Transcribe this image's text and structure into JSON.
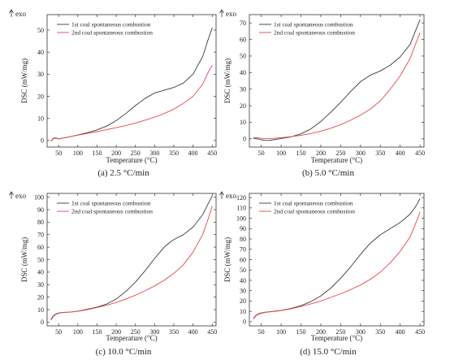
{
  "figure": {
    "exo_label": "exo",
    "legend": [
      "1st coal spontaneous combustion",
      "2nd coal spontaneous combustion"
    ]
  },
  "colors": {
    "series1": "#3a3a3a",
    "series2": "#e8474c",
    "axis": "#333333"
  },
  "chart_data": [
    {
      "type": "line",
      "caption": "(a) 2.5 °C/min",
      "xlabel": "Temperature (°C)",
      "ylabel": "DSC (mW/mg)",
      "xlim": [
        20,
        460
      ],
      "ylim": [
        -3,
        57
      ],
      "xticks": [
        50,
        100,
        150,
        200,
        250,
        300,
        350,
        400,
        450
      ],
      "yticks": [
        0,
        10,
        20,
        30,
        40,
        50
      ],
      "series": [
        {
          "name": "1st coal spontaneous combustion",
          "x": [
            30,
            35,
            40,
            45,
            50,
            60,
            80,
            100,
            125,
            150,
            175,
            200,
            225,
            250,
            275,
            300,
            325,
            350,
            375,
            400,
            425,
            440,
            450
          ],
          "y": [
            -0.3,
            0.8,
            1.2,
            1.0,
            0.7,
            1.0,
            1.7,
            2.5,
            3.5,
            4.8,
            6.5,
            9.0,
            12.2,
            15.8,
            19.0,
            21.5,
            22.8,
            24.0,
            26.0,
            30.0,
            38.0,
            46.0,
            51.0
          ]
        },
        {
          "name": "2nd coal spontaneous combustion",
          "x": [
            30,
            35,
            40,
            45,
            50,
            60,
            80,
            100,
            125,
            150,
            175,
            200,
            225,
            250,
            275,
            300,
            325,
            350,
            375,
            400,
            425,
            440,
            450
          ],
          "y": [
            -0.3,
            0.6,
            1.0,
            0.9,
            0.7,
            1.0,
            1.7,
            2.4,
            3.2,
            4.0,
            4.9,
            5.8,
            6.8,
            7.9,
            9.2,
            10.6,
            12.2,
            14.2,
            16.8,
            20.0,
            25.5,
            31.0,
            34.0
          ]
        }
      ]
    },
    {
      "type": "line",
      "caption": "(b) 5.0 °C/min",
      "xlabel": "Temperature (°C)",
      "ylabel": "DSC (mW/mg)",
      "xlim": [
        20,
        460
      ],
      "ylim": [
        -5,
        75
      ],
      "xticks": [
        50,
        100,
        150,
        200,
        250,
        300,
        350,
        400,
        450
      ],
      "yticks": [
        0,
        10,
        20,
        30,
        40,
        50,
        60,
        70
      ],
      "series": [
        {
          "name": "1st coal spontaneous combustion",
          "x": [
            30,
            40,
            50,
            60,
            70,
            80,
            100,
            125,
            150,
            175,
            200,
            225,
            250,
            275,
            300,
            325,
            350,
            375,
            400,
            425,
            440,
            450
          ],
          "y": [
            0.3,
            0.0,
            -0.6,
            -1.0,
            -1.0,
            -0.6,
            0.2,
            1.2,
            3.0,
            6.0,
            10.5,
            16.0,
            22.0,
            28.5,
            34.5,
            38.5,
            41.0,
            44.5,
            49.5,
            57.0,
            66.0,
            72.0
          ]
        },
        {
          "name": "2nd coal spontaneous combustion",
          "x": [
            30,
            40,
            50,
            60,
            80,
            100,
            125,
            150,
            175,
            200,
            225,
            250,
            275,
            300,
            325,
            350,
            375,
            400,
            425,
            440,
            450
          ],
          "y": [
            0.8,
            0.6,
            0.3,
            0.2,
            0.3,
            0.7,
            1.3,
            2.1,
            3.2,
            4.6,
            6.4,
            8.6,
            11.2,
            14.3,
            18.0,
            23.0,
            30.0,
            38.0,
            48.5,
            58.0,
            64.0
          ]
        }
      ]
    },
    {
      "type": "line",
      "caption": "(c) 10.0 °C/min",
      "xlabel": "Temperature (°C)",
      "ylabel": "DSC (mW/mg)",
      "xlim": [
        20,
        460
      ],
      "ylim": [
        -3,
        103
      ],
      "xticks": [
        50,
        100,
        150,
        200,
        250,
        300,
        350,
        400,
        450
      ],
      "yticks": [
        0,
        10,
        20,
        30,
        40,
        50,
        60,
        70,
        80,
        90,
        100
      ],
      "series": [
        {
          "name": "1st coal spontaneous combustion",
          "x": [
            30,
            35,
            40,
            45,
            50,
            60,
            80,
            100,
            125,
            150,
            175,
            200,
            225,
            250,
            275,
            300,
            325,
            340,
            350,
            375,
            400,
            425,
            440,
            450
          ],
          "y": [
            2.0,
            4.5,
            6.0,
            6.8,
            7.3,
            7.8,
            8.0,
            8.8,
            10.3,
            12.0,
            14.5,
            18.5,
            24.5,
            32.0,
            41.0,
            51.0,
            60.0,
            64.0,
            66.0,
            70.0,
            76.0,
            86.0,
            95.0,
            101.0
          ]
        },
        {
          "name": "2nd coal spontaneous combustion",
          "x": [
            30,
            35,
            40,
            45,
            50,
            60,
            80,
            100,
            125,
            150,
            175,
            200,
            225,
            250,
            275,
            300,
            325,
            350,
            375,
            400,
            425,
            440,
            450
          ],
          "y": [
            1.5,
            4.0,
            5.6,
            6.5,
            7.0,
            7.6,
            8.0,
            8.7,
            10.0,
            11.7,
            13.5,
            15.7,
            18.5,
            21.5,
            25.0,
            29.0,
            33.5,
            39.0,
            46.0,
            56.0,
            70.0,
            83.0,
            93.0
          ]
        }
      ]
    },
    {
      "type": "line",
      "caption": "(d) 15.0 °C/min",
      "xlabel": "Temperature (°C)",
      "ylabel": "DSC (mW/mg)",
      "xlim": [
        20,
        460
      ],
      "ylim": [
        -4,
        124
      ],
      "xticks": [
        50,
        100,
        150,
        200,
        250,
        300,
        350,
        400,
        450
      ],
      "yticks": [
        0,
        10,
        20,
        30,
        40,
        50,
        60,
        70,
        80,
        90,
        100,
        110,
        120
      ],
      "series": [
        {
          "name": "1st coal spontaneous combustion",
          "x": [
            30,
            35,
            40,
            45,
            50,
            60,
            80,
            100,
            125,
            150,
            175,
            200,
            225,
            250,
            275,
            300,
            325,
            350,
            375,
            400,
            425,
            440,
            450
          ],
          "y": [
            3.0,
            5.5,
            7.0,
            8.0,
            8.5,
            9.2,
            10.0,
            11.0,
            12.8,
            15.5,
            19.5,
            25.0,
            32.5,
            42.0,
            53.0,
            65.0,
            76.0,
            84.0,
            90.0,
            96.0,
            104.0,
            112.0,
            119.0
          ]
        },
        {
          "name": "2nd coal spontaneous combustion",
          "x": [
            30,
            35,
            40,
            45,
            50,
            60,
            80,
            100,
            125,
            150,
            175,
            200,
            225,
            250,
            275,
            300,
            325,
            350,
            375,
            400,
            425,
            440,
            450
          ],
          "y": [
            2.5,
            5.0,
            6.6,
            7.6,
            8.2,
            9.0,
            9.8,
            10.8,
            12.5,
            14.8,
            17.3,
            20.0,
            23.5,
            27.0,
            31.0,
            35.5,
            41.0,
            48.0,
            57.0,
            68.0,
            82.0,
            96.0,
            106.0
          ]
        }
      ]
    }
  ]
}
